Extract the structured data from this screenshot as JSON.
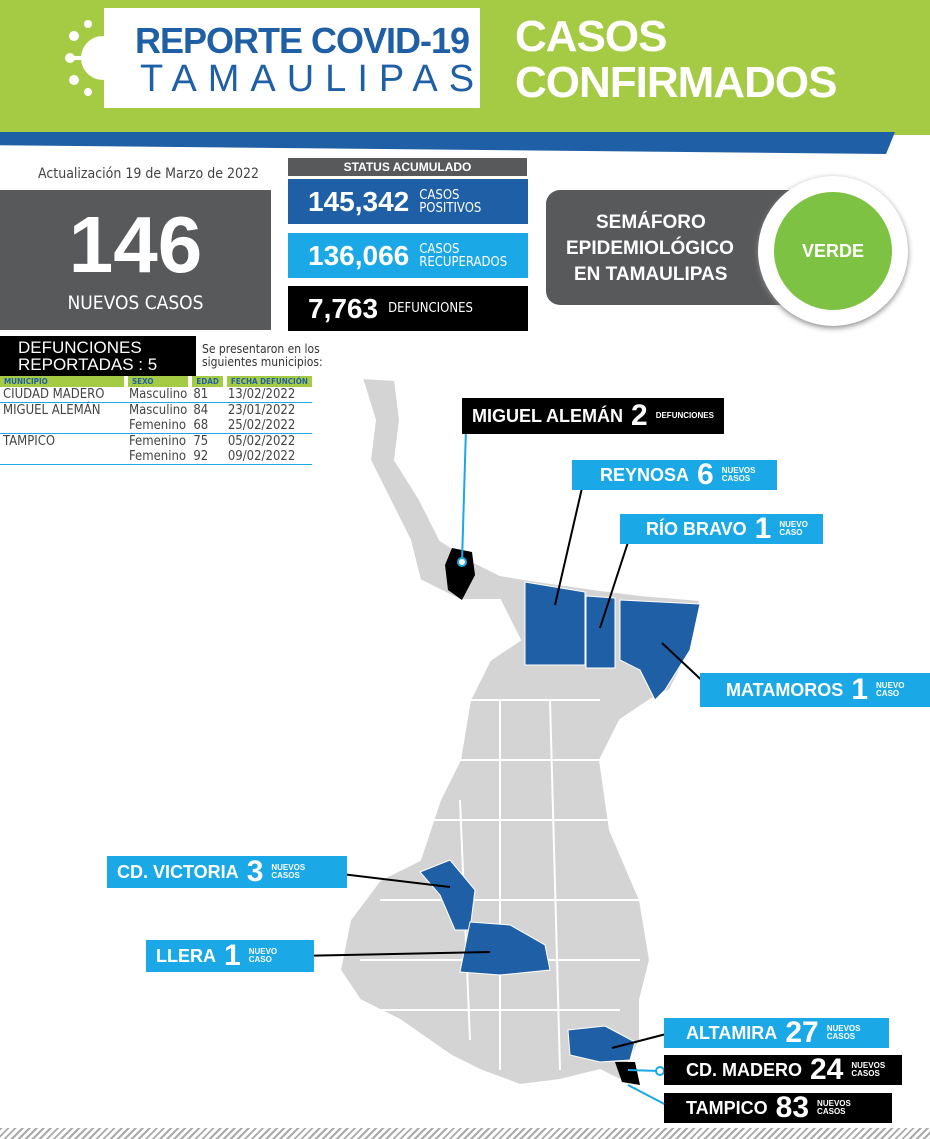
{
  "header": {
    "logo_line1": "REPORTE COVID-19",
    "logo_line2": "TAMAULIPAS",
    "title_line1": "CASOS",
    "title_line2": "CONFIRMADOS"
  },
  "update": "Actualización 19 de Marzo de 2022",
  "new_cases": {
    "value": "146",
    "label": "NUEVOS CASOS"
  },
  "status": {
    "title": "STATUS ACUMULADO",
    "items": [
      {
        "value": "145,342",
        "label1": "CASOS",
        "label2": "POSITIVOS",
        "color": "#1f5fa6"
      },
      {
        "value": "136,066",
        "label1": "CASOS",
        "label2": "RECUPERADOS",
        "color": "#1aa8e6"
      },
      {
        "value": "7,763",
        "label1": "DEFUNCIONES",
        "label2": "",
        "color": "#000000"
      }
    ]
  },
  "semaforo": {
    "line1": "SEMÁFORO",
    "line2": "EPIDEMIOLÓGICO",
    "line3": "EN TAMAULIPAS",
    "status": "VERDE",
    "color": "#7dc242"
  },
  "deaths": {
    "title1": "DEFUNCIONES",
    "title2": "REPORTADAS : 5",
    "note1": "Se presentaron en los",
    "note2": "siguientes municipios:",
    "columns": [
      "MUNICIPIO",
      "SEXO",
      "EDAD",
      "FECHA DEFUNCIÓN"
    ],
    "rows": [
      [
        "CIUDAD MADERO",
        "Masculino",
        "81",
        "13/02/2022"
      ],
      [
        "MIGUEL ALEMÁN",
        "Masculino",
        "84",
        "23/01/2022"
      ],
      [
        "",
        "Femenino",
        "68",
        "25/02/2022"
      ],
      [
        "TAMPICO",
        "Femenino",
        "75",
        "05/02/2022"
      ],
      [
        "",
        "Femenino",
        "92",
        "09/02/2022"
      ]
    ]
  },
  "callouts": [
    {
      "name": "MIGUEL ALEMÁN",
      "value": "2",
      "suffix": "DEFUNCIONES"
    },
    {
      "name": "REYNOSA",
      "value": "6",
      "suffix": "NUEVOS CASOS"
    },
    {
      "name": "RÍO BRAVO",
      "value": "1",
      "suffix": "NUEVO CASO"
    },
    {
      "name": "MATAMOROS",
      "value": "1",
      "suffix": "NUEVO CASO"
    },
    {
      "name": "CD. VICTORIA",
      "value": "3",
      "suffix": "NUEVOS CASOS"
    },
    {
      "name": "LLERA",
      "value": "1",
      "suffix": "NUEVO CASO"
    },
    {
      "name": "ALTAMIRA",
      "value": "27",
      "suffix": "NUEVOS CASOS"
    },
    {
      "name": "CD. MADERO",
      "value": "24",
      "suffix": "NUEVOS CASOS"
    },
    {
      "name": "TAMPICO",
      "value": "83",
      "suffix": "NUEVOS CASOS"
    }
  ]
}
